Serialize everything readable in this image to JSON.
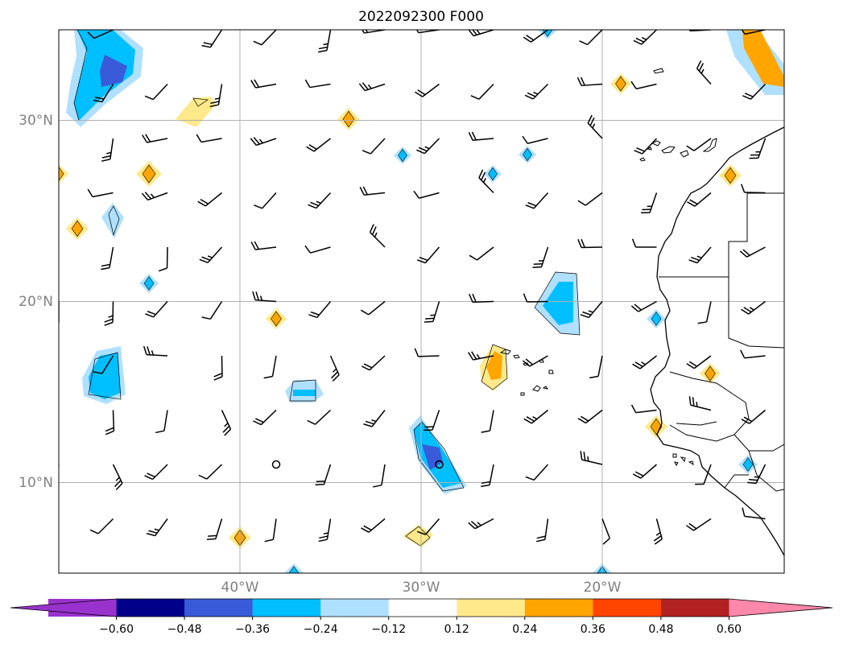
{
  "title": "2022092300 F000",
  "map": {
    "lon_range": [
      -50,
      -10
    ],
    "lat_range": [
      5,
      35
    ],
    "latitude_labels": [
      {
        "lat": 30,
        "text": "30°N"
      },
      {
        "lat": 20,
        "text": "20°N"
      },
      {
        "lat": 10,
        "text": "10°N"
      }
    ],
    "longitude_labels": [
      {
        "lon": -40,
        "text": "40°W"
      },
      {
        "lon": -30,
        "text": "30°W"
      },
      {
        "lon": -20,
        "text": "20°W"
      }
    ],
    "gridlines": true,
    "features": [
      "coastlines",
      "country borders",
      "wind barbs",
      "shaded contours"
    ]
  },
  "colorbar": {
    "colors": [
      "#9932cc",
      "#00008b",
      "#3a5bd9",
      "#00bfff",
      "#b0e0ff",
      "#ffffff",
      "#ffe98a",
      "#ffa500",
      "#ff4500",
      "#b22222",
      "#ff88aa"
    ],
    "ticks": [
      "−0.60",
      "−0.48",
      "−0.36",
      "−0.24",
      "−0.12",
      "0.12",
      "0.24",
      "0.36",
      "0.48",
      "0.60"
    ],
    "extend": "both"
  }
}
